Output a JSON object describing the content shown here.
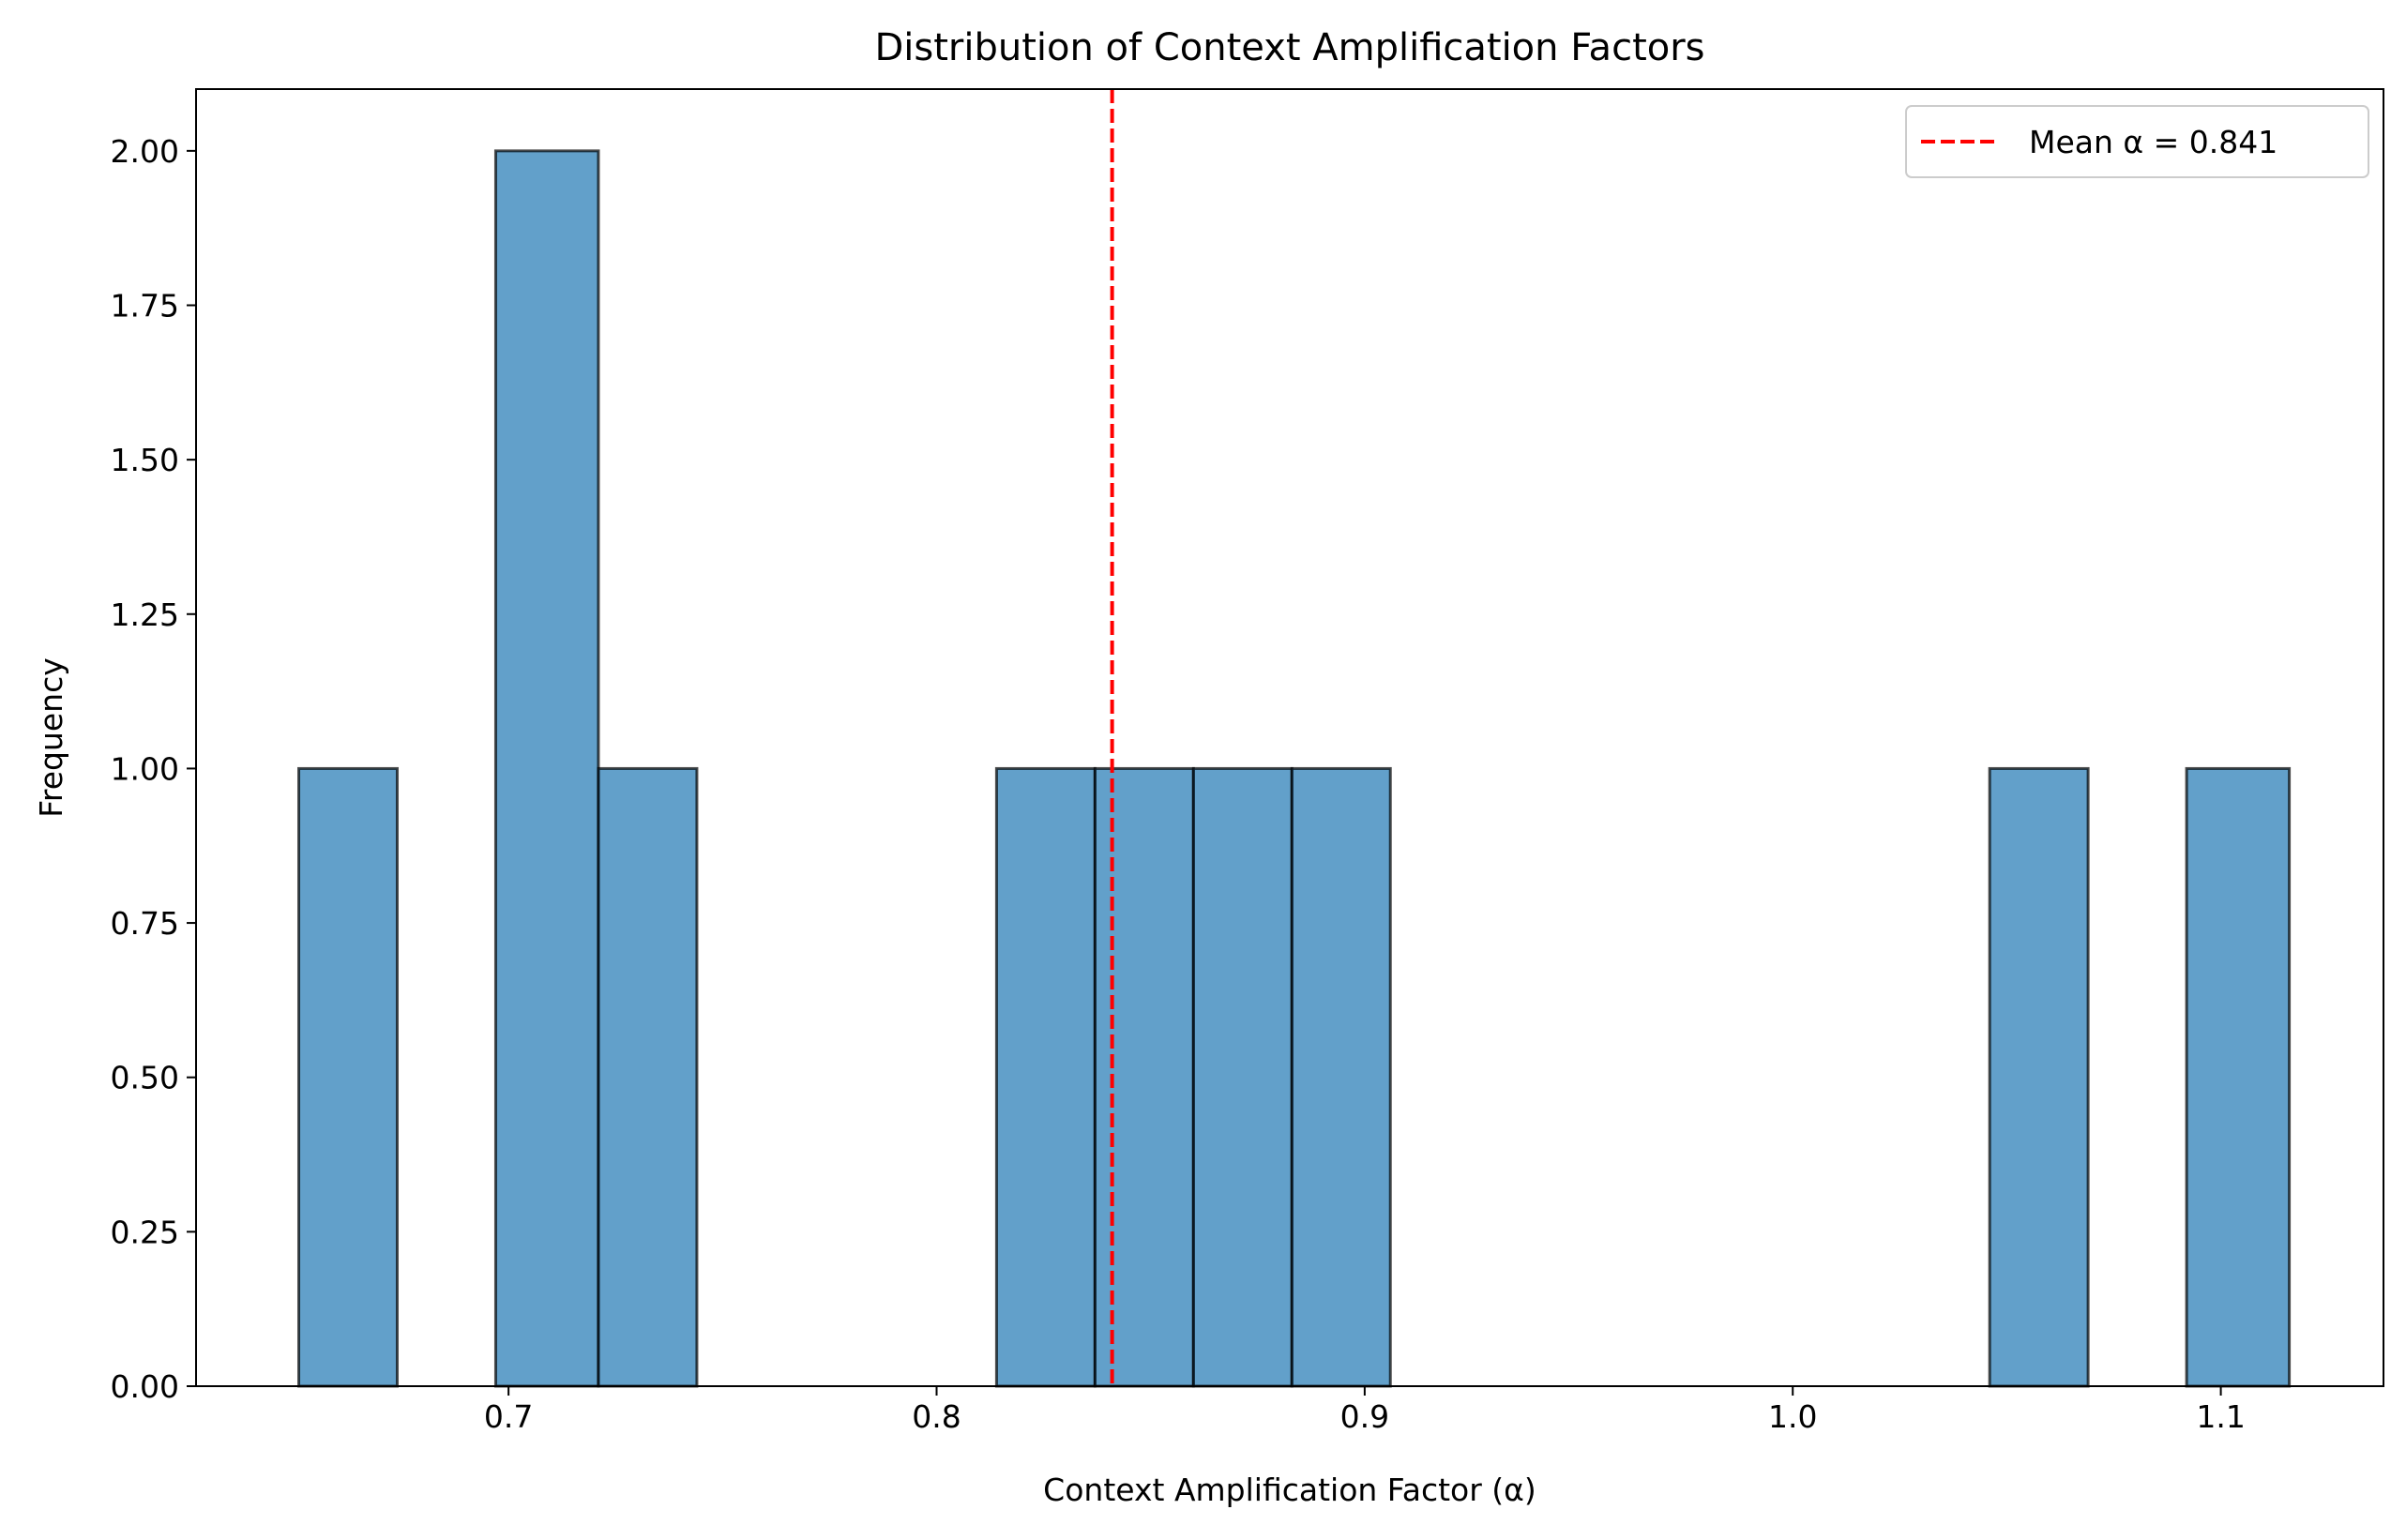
{
  "chart_data": {
    "type": "bar",
    "title": "Distribution of Context Amplification Factors",
    "xlabel": "Context Amplification Factor (α)",
    "ylabel": "Frequency",
    "xlim": [
      0.627,
      1.138
    ],
    "ylim": [
      0,
      2.1
    ],
    "x_ticks": [
      0.7,
      0.8,
      0.9,
      1.0,
      1.1
    ],
    "x_tick_labels": [
      "0.7",
      "0.8",
      "0.9",
      "1.0",
      "1.1"
    ],
    "y_ticks": [
      0,
      0.25,
      0.5,
      0.75,
      1.0,
      1.25,
      1.5,
      1.75,
      2.0
    ],
    "y_tick_labels": [
      "0.00",
      "0.25",
      "0.50",
      "0.75",
      "1.00",
      "1.25",
      "1.50",
      "1.75",
      "2.00"
    ],
    "grid": false,
    "legend_position": "top-right",
    "bins": [
      {
        "start": 0.651,
        "end": 0.674,
        "count": 1
      },
      {
        "start": 0.674,
        "end": 0.697,
        "count": 0
      },
      {
        "start": 0.697,
        "end": 0.721,
        "count": 2
      },
      {
        "start": 0.721,
        "end": 0.744,
        "count": 1
      },
      {
        "start": 0.744,
        "end": 0.767,
        "count": 0
      },
      {
        "start": 0.767,
        "end": 0.79,
        "count": 0
      },
      {
        "start": 0.79,
        "end": 0.814,
        "count": 0
      },
      {
        "start": 0.814,
        "end": 0.837,
        "count": 1
      },
      {
        "start": 0.837,
        "end": 0.86,
        "count": 1
      },
      {
        "start": 0.86,
        "end": 0.883,
        "count": 1
      },
      {
        "start": 0.883,
        "end": 0.906,
        "count": 1
      },
      {
        "start": 0.906,
        "end": 0.93,
        "count": 0
      },
      {
        "start": 0.93,
        "end": 0.953,
        "count": 0
      },
      {
        "start": 0.953,
        "end": 0.976,
        "count": 0
      },
      {
        "start": 0.976,
        "end": 0.999,
        "count": 0
      },
      {
        "start": 0.999,
        "end": 1.023,
        "count": 0
      },
      {
        "start": 1.023,
        "end": 1.046,
        "count": 0
      },
      {
        "start": 1.046,
        "end": 1.069,
        "count": 1
      },
      {
        "start": 1.069,
        "end": 1.092,
        "count": 0
      },
      {
        "start": 1.092,
        "end": 1.116,
        "count": 1
      }
    ],
    "mean_line": {
      "value": 0.841,
      "label": "Mean α = 0.841",
      "color": "#ff0000",
      "style": "dashed"
    },
    "bar_color": "#1f77b4",
    "bar_alpha": 0.7,
    "bar_edge_color": "#000000"
  }
}
